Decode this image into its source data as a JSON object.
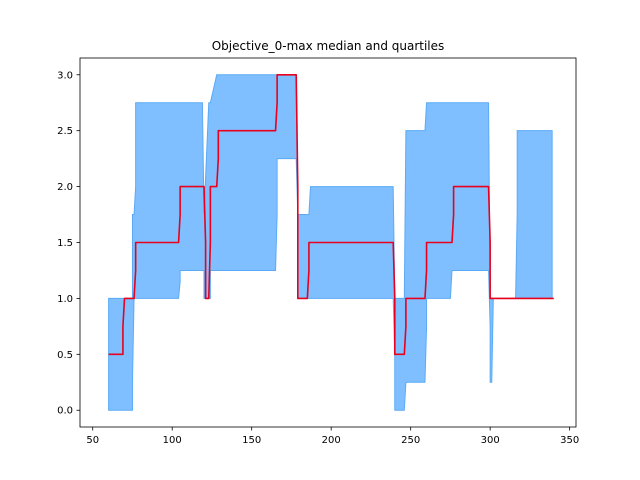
{
  "chart_data": {
    "type": "line",
    "title": "Objective_0-max median and quartiles",
    "xlabel": "",
    "ylabel": "",
    "xlim": [
      42,
      354
    ],
    "ylim": [
      -0.15,
      3.15
    ],
    "xticks": [
      50,
      100,
      150,
      200,
      250,
      300,
      350
    ],
    "yticks": [
      0.0,
      0.5,
      1.0,
      1.5,
      2.0,
      2.5,
      3.0
    ],
    "xtick_labels": [
      "50",
      "100",
      "150",
      "200",
      "250",
      "300",
      "350"
    ],
    "ytick_labels": [
      "0.0",
      "0.5",
      "1.0",
      "1.5",
      "2.0",
      "2.5",
      "3.0"
    ],
    "grid": false,
    "series": [
      {
        "kind": "line",
        "color": "#e8001c",
        "x": [
          60,
          69,
          69,
          70,
          70,
          76,
          77,
          77,
          104,
          105,
          105,
          120,
          121,
          121,
          123,
          124,
          124,
          128,
          129,
          129,
          165,
          166,
          166,
          178,
          179,
          179,
          185,
          186,
          186,
          239,
          240,
          240,
          246,
          247,
          247,
          259,
          260,
          260,
          276,
          277,
          277,
          299,
          300,
          300,
          340
        ],
        "values": [
          0.5,
          0.5,
          0.75,
          1.0,
          1.0,
          1.0,
          1.25,
          1.5,
          1.5,
          1.75,
          2.0,
          2.0,
          1.5,
          1.0,
          1.0,
          1.5,
          2.0,
          2.0,
          2.25,
          2.5,
          2.5,
          2.75,
          3.0,
          3.0,
          2.0,
          1.0,
          1.0,
          1.25,
          1.5,
          1.5,
          1.0,
          0.5,
          0.5,
          0.75,
          1.0,
          1.0,
          1.25,
          1.5,
          1.5,
          1.75,
          2.0,
          2.0,
          1.5,
          1.0,
          1.0
        ]
      },
      {
        "kind": "band",
        "color": "#7fbfff",
        "edge_color": "#5aaaf5",
        "x": [
          60,
          69,
          69,
          75,
          75,
          76,
          77,
          77,
          104,
          105,
          105,
          119,
          120,
          120,
          123,
          124,
          124,
          128,
          129,
          129,
          165,
          166,
          166,
          178,
          179,
          179,
          186,
          187,
          187,
          239,
          240,
          240,
          246,
          247,
          247,
          259,
          260,
          260,
          275,
          276,
          276,
          299,
          300,
          300,
          301,
          302,
          302,
          316,
          317,
          317,
          339
        ],
        "lower": [
          0.0,
          0.0,
          0.0,
          0.0,
          0.25,
          1.0,
          1.0,
          1.0,
          1.0,
          1.15,
          1.25,
          1.25,
          1.25,
          1.0,
          1.0,
          1.0,
          1.25,
          1.25,
          1.25,
          1.25,
          1.25,
          1.75,
          2.25,
          2.25,
          1.75,
          1.0,
          1.0,
          1.0,
          1.0,
          1.0,
          0.5,
          0.0,
          0.0,
          0.25,
          0.25,
          0.25,
          0.75,
          1.0,
          1.0,
          1.25,
          1.25,
          1.25,
          0.75,
          0.25,
          0.25,
          1.0,
          1.0,
          1.0,
          1.0,
          1.0,
          1.0
        ],
        "upper": [
          1.0,
          1.0,
          1.0,
          1.0,
          1.75,
          1.75,
          2.0,
          2.75,
          2.75,
          2.75,
          2.75,
          2.75,
          1.75,
          1.75,
          2.75,
          2.75,
          2.75,
          3.0,
          3.0,
          3.0,
          3.0,
          3.0,
          3.0,
          3.0,
          1.75,
          1.75,
          1.75,
          2.0,
          2.0,
          2.0,
          1.0,
          1.0,
          1.0,
          2.5,
          2.5,
          2.5,
          2.75,
          2.75,
          2.75,
          2.75,
          2.75,
          2.75,
          1.0,
          1.0,
          1.0,
          1.0,
          1.0,
          1.0,
          1.75,
          2.5,
          2.5
        ]
      }
    ]
  }
}
